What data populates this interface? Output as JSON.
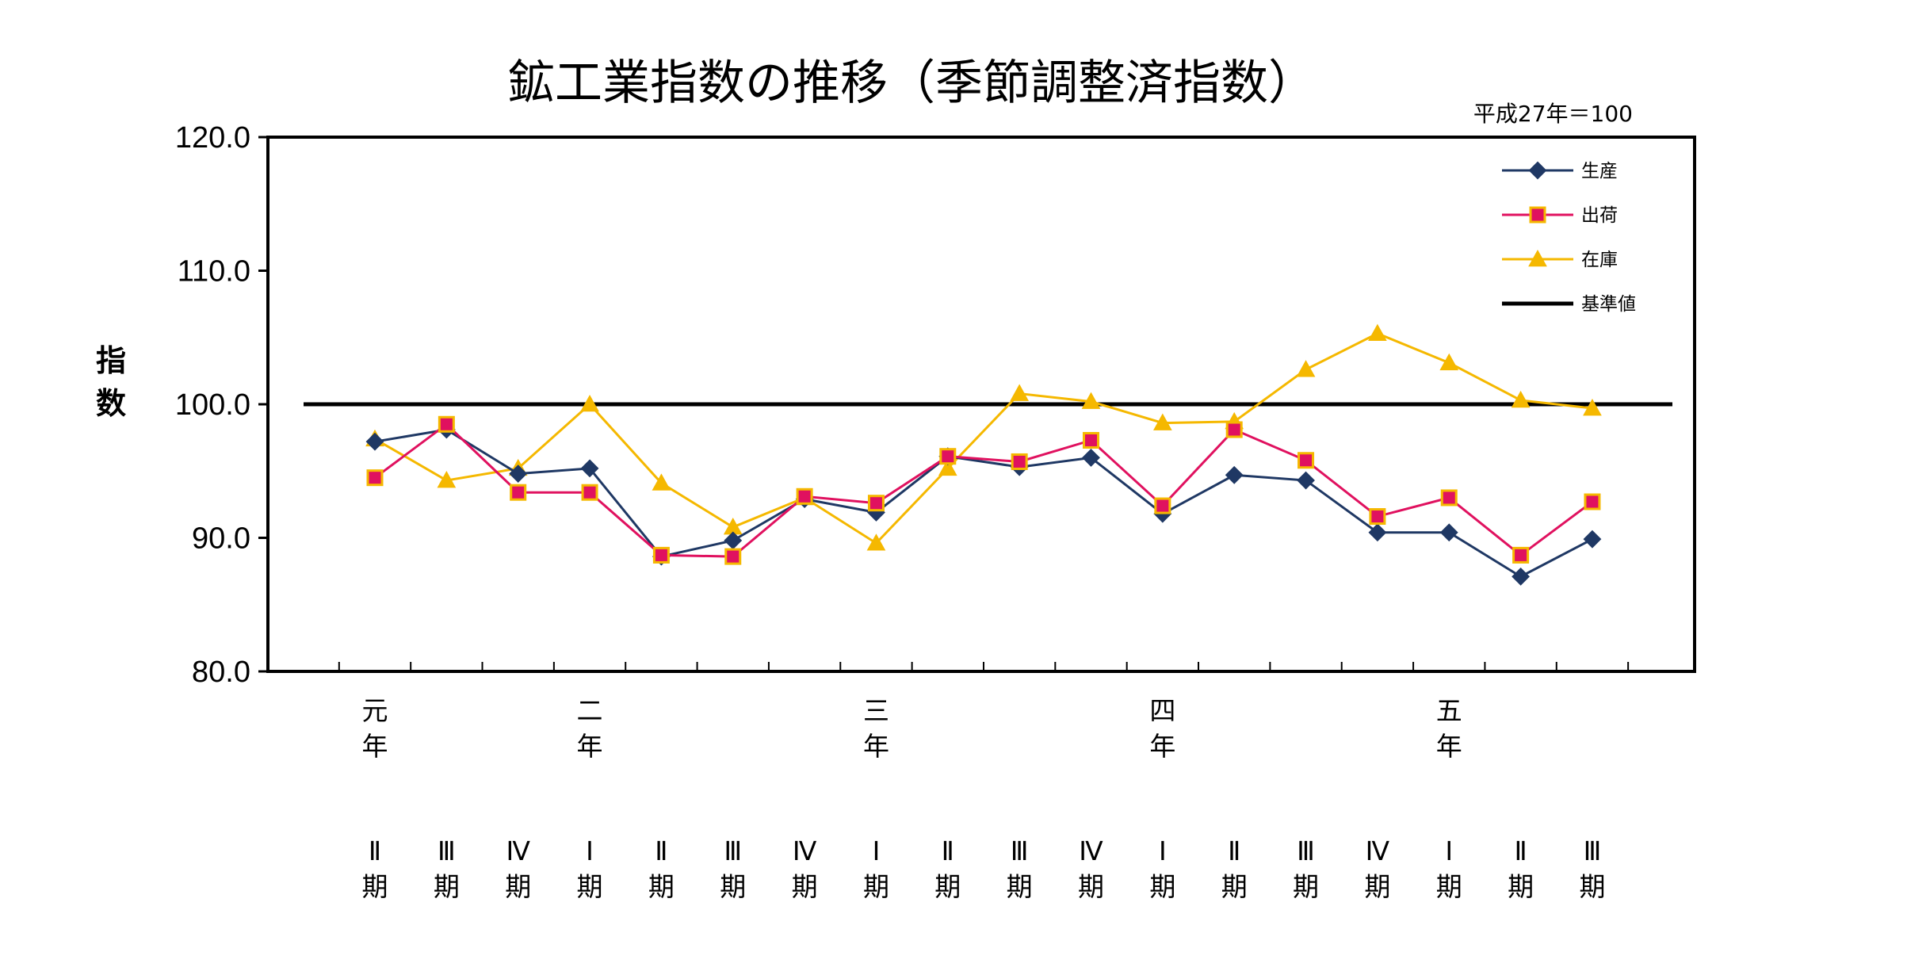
{
  "chart_data": {
    "type": "line",
    "title": "鉱工業指数の推移（季節調整済指数）",
    "unit_note": "平成27年＝100",
    "ylabel": [
      "指",
      "数"
    ],
    "ylim": [
      80,
      120
    ],
    "yticks": [
      "80.0",
      "90.0",
      "100.0",
      "110.0",
      "120.0"
    ],
    "grid": false,
    "legend_position": "top-right",
    "year_labels": [
      {
        "index": 0,
        "chars": [
          "元",
          "年"
        ]
      },
      {
        "index": 3,
        "chars": [
          "二",
          "年"
        ]
      },
      {
        "index": 7,
        "chars": [
          "三",
          "年"
        ]
      },
      {
        "index": 11,
        "chars": [
          "四",
          "年"
        ]
      },
      {
        "index": 15,
        "chars": [
          "五",
          "年"
        ]
      }
    ],
    "categories": [
      [
        "Ⅱ",
        "期"
      ],
      [
        "Ⅲ",
        "期"
      ],
      [
        "Ⅳ",
        "期"
      ],
      [
        "Ⅰ",
        "期"
      ],
      [
        "Ⅱ",
        "期"
      ],
      [
        "Ⅲ",
        "期"
      ],
      [
        "Ⅳ",
        "期"
      ],
      [
        "Ⅰ",
        "期"
      ],
      [
        "Ⅱ",
        "期"
      ],
      [
        "Ⅲ",
        "期"
      ],
      [
        "Ⅳ",
        "期"
      ],
      [
        "Ⅰ",
        "期"
      ],
      [
        "Ⅱ",
        "期"
      ],
      [
        "Ⅲ",
        "期"
      ],
      [
        "Ⅳ",
        "期"
      ],
      [
        "Ⅰ",
        "期"
      ],
      [
        "Ⅱ",
        "期"
      ],
      [
        "Ⅲ",
        "期"
      ]
    ],
    "series": [
      {
        "name": "生産",
        "color": "#1f3864",
        "marker": "diamond",
        "values": [
          97.2,
          98.1,
          94.8,
          95.2,
          88.6,
          89.8,
          92.9,
          91.9,
          96.1,
          95.3,
          96.0,
          91.8,
          94.7,
          94.3,
          90.4,
          90.4,
          87.1,
          89.9
        ]
      },
      {
        "name": "出荷",
        "color": "#e0115f",
        "marker": "square",
        "values": [
          94.5,
          98.5,
          93.4,
          93.4,
          88.7,
          88.6,
          93.1,
          92.6,
          96.1,
          95.7,
          97.3,
          92.4,
          98.1,
          95.8,
          91.6,
          93.0,
          88.7,
          92.7
        ]
      },
      {
        "name": "在庫",
        "color": "#f5b800",
        "marker": "triangle",
        "values": [
          97.4,
          94.3,
          95.2,
          100.0,
          94.1,
          90.8,
          93.0,
          89.6,
          95.2,
          100.8,
          100.2,
          98.6,
          98.7,
          102.6,
          105.3,
          103.1,
          100.3,
          99.7
        ]
      }
    ],
    "reference_line": {
      "name": "基準値",
      "value": 100.0,
      "color": "#000000"
    }
  }
}
